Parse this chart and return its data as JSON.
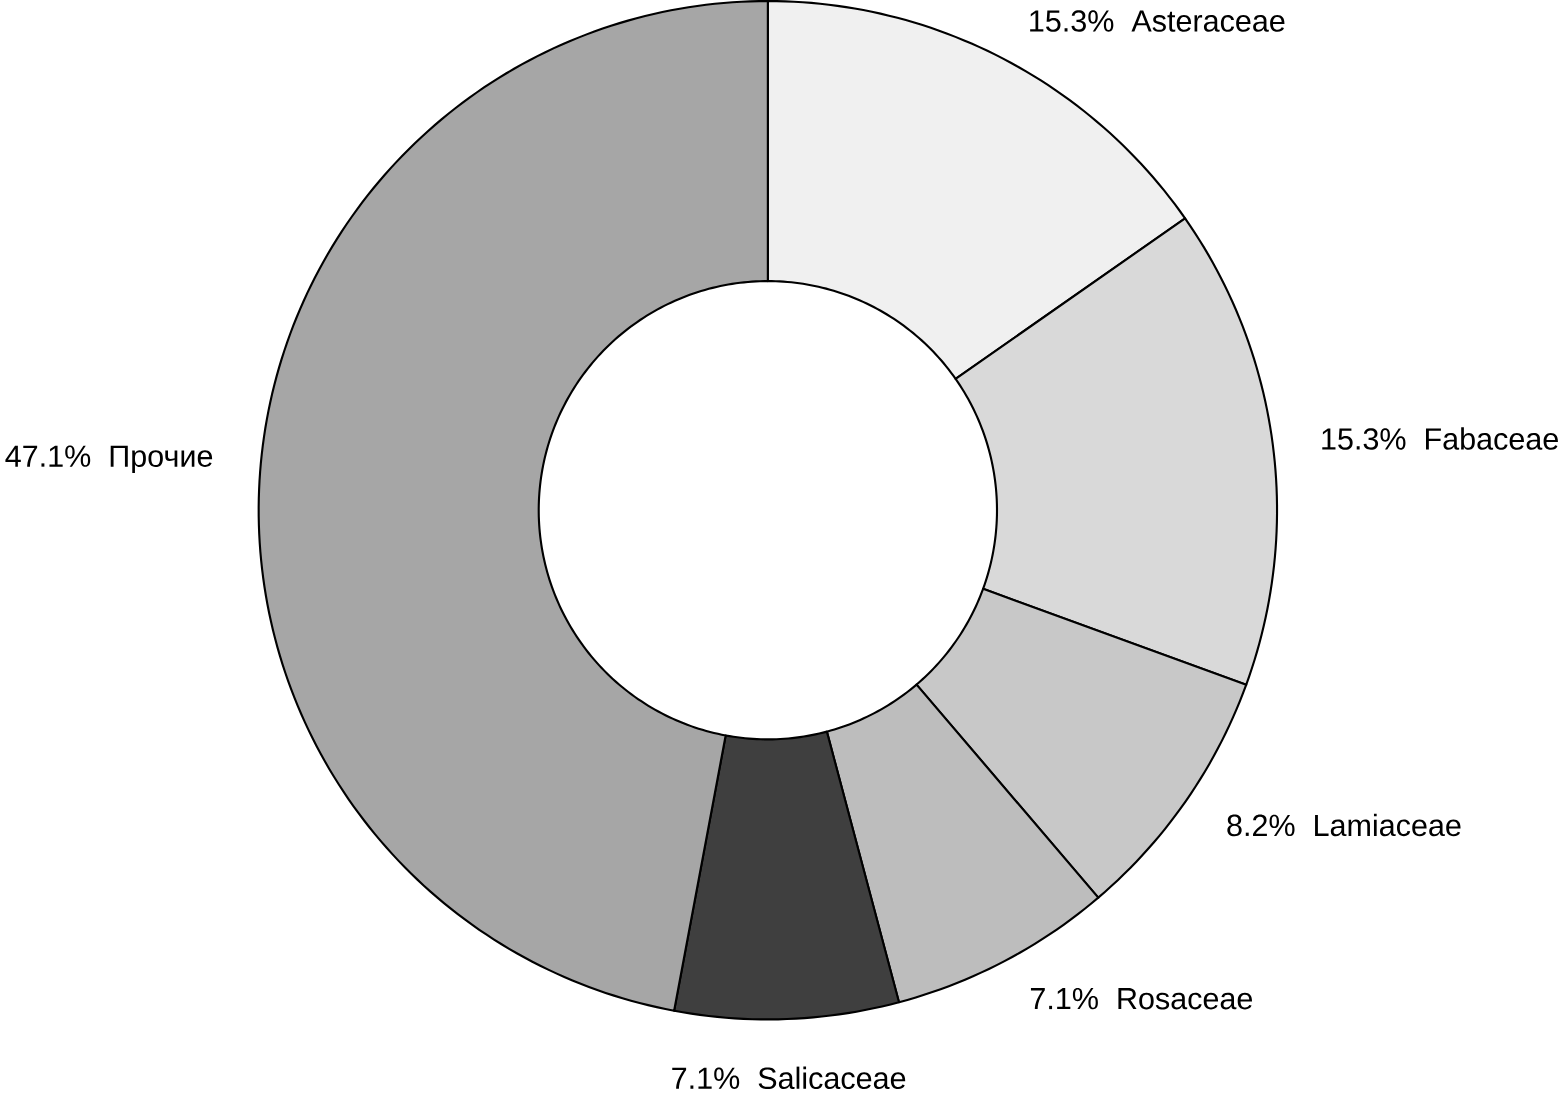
{
  "chart_data": {
    "type": "donut",
    "categories": [
      "Asteraceae",
      "Fabaceae",
      "Lamiaceae",
      "Rosaceae",
      "Salicaceae",
      "Прочие"
    ],
    "values": [
      15.3,
      15.3,
      8.2,
      7.1,
      7.1,
      47.1
    ],
    "value_labels": [
      "15.3%",
      "15.3%",
      "8.2%",
      "7.1%",
      "7.1%",
      "47.1%"
    ],
    "colors": [
      "#f0f0f0",
      "#d9d9d9",
      "#c8c8c8",
      "#bdbdbd",
      "#3f3f3f",
      "#a6a6a6"
    ]
  }
}
